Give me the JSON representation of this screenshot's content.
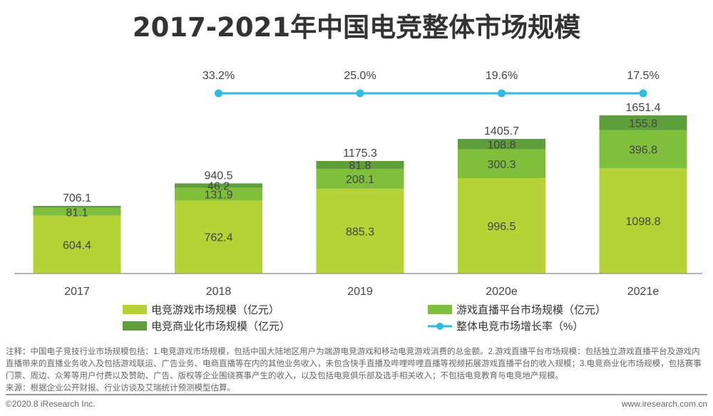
{
  "chart_data": {
    "type": "bar",
    "title": "2017-2021年中国电竞整体市场规模",
    "categories": [
      "2017",
      "2018",
      "2019",
      "2020e",
      "2021e"
    ],
    "series": [
      {
        "name": "电竞游戏市场规模（亿元）",
        "color": "#b5d334",
        "values": [
          604.4,
          762.4,
          885.3,
          996.5,
          1098.8
        ],
        "labels": [
          "604.4",
          "762.4",
          "885.3",
          "996.5",
          "1098.8"
        ]
      },
      {
        "name": "游戏直播平台市场规模（亿元）",
        "color": "#7fbf3c",
        "values": [
          81.1,
          131.9,
          208.1,
          300.3,
          396.8
        ],
        "labels": [
          "81.1",
          "131.9",
          "208.1",
          "300.3",
          "396.8"
        ]
      },
      {
        "name": "电竞商业化市场规模（亿元）",
        "color": "#5e9f3b",
        "values": [
          20.6,
          46.2,
          81.8,
          108.8,
          155.8
        ],
        "labels": [
          "",
          "46.2",
          "81.8",
          "108.8",
          "155.8"
        ]
      }
    ],
    "totals": [
      "706.1",
      "940.5",
      "1175.3",
      "1405.7",
      "1651.4"
    ],
    "line": {
      "name": "整体电竞市场增长率（%）",
      "color": "#2bbde6",
      "values": [
        null,
        33.2,
        25.0,
        19.6,
        17.5
      ],
      "labels": [
        "",
        "33.2%",
        "25.0%",
        "19.6%",
        "17.5%"
      ]
    },
    "legend": "bottom"
  },
  "note": "注释：中国电子竞技行业市场规模包括：1.电竞游戏市场规模，包括中国大陆地区用户为端游电竞游戏和移动电竞游戏消费的总金额。2.游戏直播平台市场规模：包括独立游戏直播平台及游戏内直播带来的直播业务收入及包括游戏联运、广告业务、电商直播等在内的其他业务收入，未包含快手直播及哔哩哔哩直播等视频拓展游戏直播平台的收入规模；3.电竞商业化市场规模，包括赛事门票、周边、众筹等用户付费以及赞助、广告、版权等企业围绕赛事产生的收入，以及包括电竞俱乐部及选手相关收入；不包括电竞教育与电竞地产规模。",
  "source": "来源：根据企业公开财报、行业访谈及艾瑞统计预测模型估算。",
  "copyright": "©2020.8 iResearch Inc.",
  "website": "www.iresearch.com.cn"
}
